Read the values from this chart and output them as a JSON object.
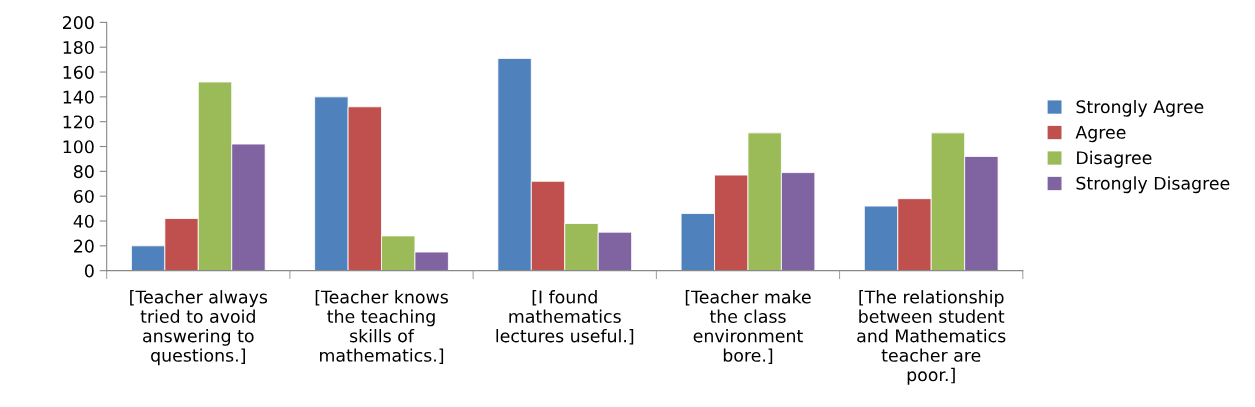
{
  "chart_data": {
    "type": "bar",
    "categories": [
      "[Teacher always\ntried to avoid\nanswering to\nquestions.]",
      "[Teacher knows\nthe teaching\nskills of\nmathematics.]",
      "[I found\nmathematics\nlectures useful.]",
      "[Teacher make\nthe class\nenvironment\nbore.]",
      "[The relationship\nbetween student\nand Mathematics\nteacher are\npoor.]"
    ],
    "series": [
      {
        "name": "Strongly Agree",
        "color": "#4f81bd",
        "values": [
          20,
          140,
          171,
          46,
          52
        ]
      },
      {
        "name": "Agree",
        "color": "#c0504d",
        "values": [
          42,
          132,
          72,
          77,
          58
        ]
      },
      {
        "name": "Disagree",
        "color": "#9bbb59",
        "values": [
          152,
          28,
          38,
          111,
          111
        ]
      },
      {
        "name": "Strongly Disagree",
        "color": "#8064a2",
        "values": [
          102,
          15,
          31,
          79,
          92
        ]
      }
    ],
    "ylim": [
      0,
      200
    ],
    "yticks": [
      0,
      20,
      40,
      60,
      80,
      100,
      120,
      140,
      160,
      180,
      200
    ],
    "legend": "right"
  }
}
